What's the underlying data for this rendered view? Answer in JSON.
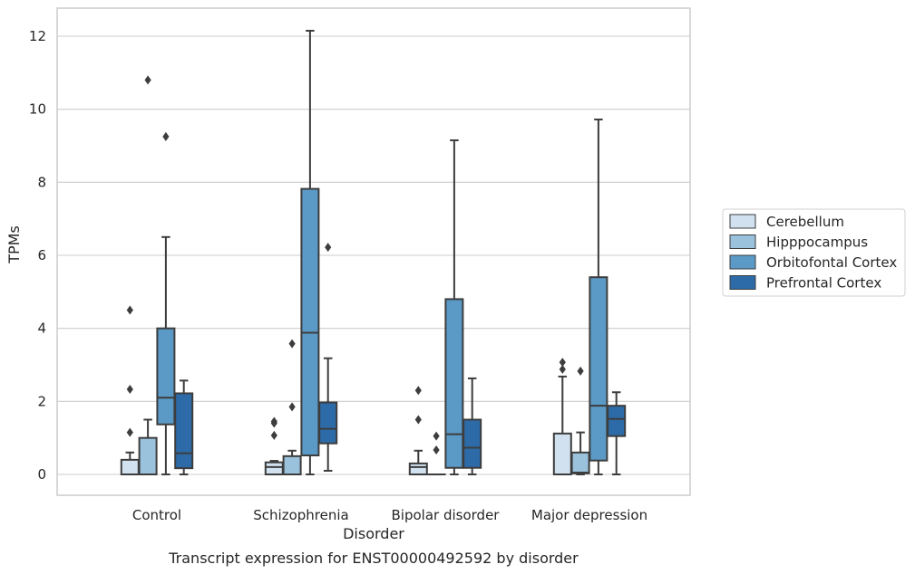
{
  "chart_data": {
    "type": "box",
    "title": "",
    "caption": "Transcript expression for ENST00000492592 by disorder",
    "xlabel": "Disorder",
    "ylabel": "TPMs",
    "ylim": [
      -0.6,
      12.75
    ],
    "yticks": [
      0,
      2,
      4,
      6,
      8,
      10,
      12
    ],
    "grid": "horizontal",
    "legend_position": "right",
    "categories": [
      "Control",
      "Schizophrenia",
      "Bipolar disorder",
      "Major depression"
    ],
    "series": [
      {
        "name": "Cerebellum",
        "color": "#d1e1ef",
        "boxes": [
          {
            "whisker_low": 0,
            "q1": 0,
            "median": 0,
            "q3": 0.4,
            "whisker_high": 0.6,
            "outliers": [
              1.15,
              2.33,
              4.5
            ]
          },
          {
            "whisker_low": 0,
            "q1": 0,
            "median": 0.2,
            "q3": 0.33,
            "whisker_high": 0.37,
            "outliers": [
              1.07,
              1.4,
              1.45
            ]
          },
          {
            "whisker_low": 0,
            "q1": 0,
            "median": 0.2,
            "q3": 0.3,
            "whisker_high": 0.65,
            "outliers": [
              1.5,
              2.3
            ]
          },
          {
            "whisker_low": 0,
            "q1": 0,
            "median": 0,
            "q3": 1.12,
            "whisker_high": 2.68,
            "outliers": [
              2.88,
              3.07
            ]
          }
        ]
      },
      {
        "name": "Hipppocampus",
        "color": "#9ac2dd",
        "boxes": [
          {
            "whisker_low": 0,
            "q1": 0,
            "median": 0,
            "q3": 1.0,
            "whisker_high": 1.5,
            "outliers": [
              10.8
            ]
          },
          {
            "whisker_low": 0,
            "q1": 0,
            "median": 0,
            "q3": 0.5,
            "whisker_high": 0.65,
            "outliers": [
              1.85,
              3.58
            ]
          },
          {
            "whisker_low": 0,
            "q1": 0,
            "median": 0,
            "q3": 0,
            "whisker_high": 0,
            "outliers": [
              0.67,
              1.05
            ]
          },
          {
            "whisker_low": 0,
            "q1": 0.03,
            "median": 0.05,
            "q3": 0.6,
            "whisker_high": 1.15,
            "outliers": [
              2.83
            ]
          }
        ]
      },
      {
        "name": "Orbitofontal Cortex",
        "color": "#5b9ac6",
        "boxes": [
          {
            "whisker_low": 0,
            "q1": 1.37,
            "median": 2.1,
            "q3": 4.0,
            "whisker_high": 6.5,
            "outliers": [
              9.25
            ]
          },
          {
            "whisker_low": 0,
            "q1": 0.52,
            "median": 3.88,
            "q3": 7.82,
            "whisker_high": 12.15,
            "outliers": []
          },
          {
            "whisker_low": 0,
            "q1": 0.18,
            "median": 1.1,
            "q3": 4.8,
            "whisker_high": 9.15,
            "outliers": []
          },
          {
            "whisker_low": 0,
            "q1": 0.38,
            "median": 1.88,
            "q3": 5.4,
            "whisker_high": 9.72,
            "outliers": []
          }
        ]
      },
      {
        "name": "Prefrontal Cortex",
        "color": "#2c6ba8",
        "boxes": [
          {
            "whisker_low": 0,
            "q1": 0.17,
            "median": 0.58,
            "q3": 2.22,
            "whisker_high": 2.57,
            "outliers": []
          },
          {
            "whisker_low": 0.1,
            "q1": 0.85,
            "median": 1.25,
            "q3": 1.97,
            "whisker_high": 3.18,
            "outliers": [
              6.22
            ]
          },
          {
            "whisker_low": 0,
            "q1": 0.18,
            "median": 0.73,
            "q3": 1.5,
            "whisker_high": 2.63,
            "outliers": []
          },
          {
            "whisker_low": 0,
            "q1": 1.05,
            "median": 1.52,
            "q3": 1.88,
            "whisker_high": 2.25,
            "outliers": []
          }
        ]
      }
    ]
  }
}
